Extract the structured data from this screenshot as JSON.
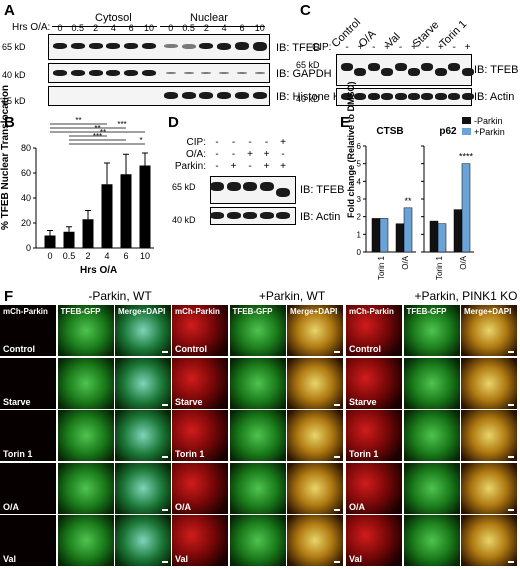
{
  "panelA": {
    "letter": "A",
    "hrs_label": "Hrs O/A:",
    "group_cytosol": "Cytosol",
    "group_nuclear": "Nuclear",
    "time_labels": [
      "0",
      "0.5",
      "2",
      "4",
      "6",
      "10",
      "0",
      "0.5",
      "2",
      "4",
      "6",
      "10"
    ],
    "mw": [
      "65 kD",
      "40 kD",
      "15 kD"
    ],
    "ib": [
      "IB: TFEB",
      "IB: GAPDH",
      "IB: Histone H3"
    ]
  },
  "panelB": {
    "letter": "B",
    "chart_data": {
      "type": "bar",
      "categories": [
        "0",
        "0.5",
        "2",
        "4",
        "6",
        "10"
      ],
      "values": [
        10,
        13,
        23,
        51,
        59,
        66
      ],
      "errors": [
        4,
        4,
        7,
        17,
        16,
        10
      ],
      "xlabel": "Hrs O/A",
      "ylabel": "% TFEB Nuclear Translocation",
      "ylim": [
        0,
        80
      ],
      "yticks": [
        "0",
        "20",
        "40",
        "60",
        "80"
      ],
      "significance": [
        "**",
        "***",
        "**",
        "**",
        "***",
        "*",
        "**",
        "**",
        "**"
      ]
    }
  },
  "panelC": {
    "letter": "C",
    "conditions": [
      "Control",
      "O/A",
      "Val",
      "Starve",
      "Torin 1"
    ],
    "cip_label": "CIP:",
    "cip_signs": [
      "-",
      "+",
      "-",
      "+",
      "-",
      "+",
      "-",
      "+",
      "-",
      "+"
    ],
    "mw": [
      "65 kD",
      "40 kD"
    ],
    "ib": [
      "IB: TFEB",
      "IB: Actin"
    ]
  },
  "panelD": {
    "letter": "D",
    "rows": [
      {
        "label": "CIP:",
        "signs": [
          "-",
          "-",
          "-",
          "-",
          "+"
        ]
      },
      {
        "label": "O/A:",
        "signs": [
          "-",
          "-",
          "+",
          "+",
          "-"
        ]
      },
      {
        "label": "Parkin:",
        "signs": [
          "-",
          "+",
          "-",
          "+",
          "+"
        ]
      }
    ],
    "mw": [
      "65 kD",
      "40 kD"
    ],
    "ib": [
      "IB: TFEB",
      "IB: Actin"
    ]
  },
  "panelE": {
    "letter": "E",
    "ylabel": "Fold change (Relative to DMSO)",
    "legend": [
      "-Parkin",
      "+Parkin"
    ],
    "colors": {
      "minus": "#111111",
      "plus": "#6aa3d8"
    },
    "chart_data": [
      {
        "type": "bar",
        "title": "CTSB",
        "categories": [
          "Torin 1",
          "O/A"
        ],
        "series": [
          {
            "name": "-Parkin",
            "values": [
              1.9,
              1.6
            ]
          },
          {
            "name": "+Parkin",
            "values": [
              1.9,
              2.5
            ]
          }
        ],
        "ylim": [
          0,
          6
        ],
        "yticks": [
          "0",
          "1",
          "2",
          "3",
          "4",
          "5",
          "6"
        ],
        "sig": "**"
      },
      {
        "type": "bar",
        "title": "p62",
        "categories": [
          "Torin 1",
          "O/A"
        ],
        "series": [
          {
            "name": "-Parkin",
            "values": [
              1.75,
              2.4
            ]
          },
          {
            "name": "+Parkin",
            "values": [
              1.6,
              5.0
            ]
          }
        ],
        "ylim": [
          0,
          6
        ],
        "yticks": [],
        "sig": "****"
      }
    ]
  },
  "panelF": {
    "letter": "F",
    "groups": [
      "-Parkin, WT",
      "+Parkin, WT",
      "+Parkin, PINK1 KO"
    ],
    "channels": [
      "mCh-Parkin",
      "TFEB-GFP",
      "Merge+DAPI"
    ],
    "conditions": [
      "Control",
      "Starve",
      "Torin 1",
      "O/A",
      "Val"
    ]
  }
}
